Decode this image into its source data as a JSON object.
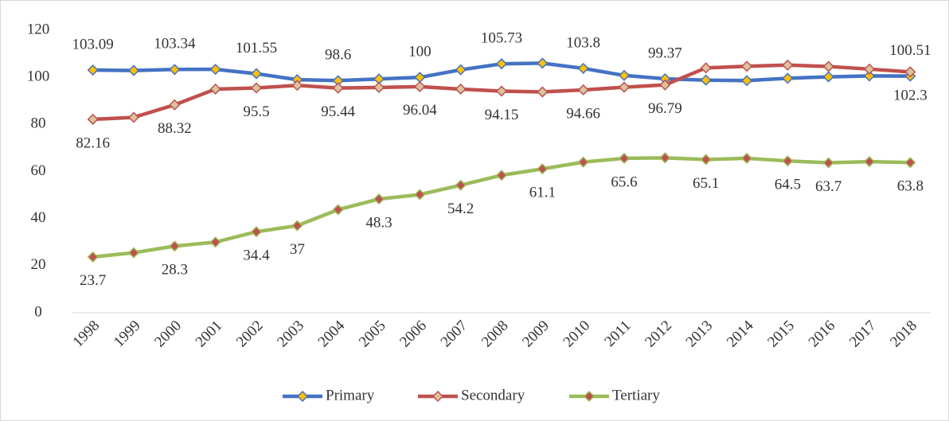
{
  "chart_data": {
    "type": "line",
    "categories": [
      "1998",
      "1999",
      "2000",
      "2001",
      "2002",
      "2003",
      "2004",
      "2005",
      "2006",
      "2007",
      "2008",
      "2009",
      "2010",
      "2011",
      "2012",
      "2013",
      "2014",
      "2015",
      "2016",
      "2017",
      "2018"
    ],
    "ylim": [
      0,
      120
    ],
    "yticks": [
      0,
      20,
      40,
      60,
      80,
      100,
      120
    ],
    "grid": false,
    "legend": "bottom",
    "series": [
      {
        "name": "Primary",
        "color": "#4472c4",
        "marker_color": "#ffc000",
        "label_side": "above",
        "values": [
          103.09,
          102.9,
          103.34,
          103.4,
          101.55,
          99.0,
          98.6,
          99.3,
          100,
          103.2,
          105.73,
          106.0,
          103.8,
          100.8,
          99.37,
          98.8,
          98.6,
          99.6,
          100.2,
          100.6,
          100.51
        ],
        "value_labels": [
          "103.09",
          null,
          "103.34",
          null,
          "101.55",
          null,
          "98.6",
          null,
          "100",
          null,
          "105.73",
          null,
          "103.8",
          null,
          "99.37",
          null,
          null,
          null,
          null,
          null,
          "100.51"
        ]
      },
      {
        "name": "Secondary",
        "color": "#c0504d",
        "marker_color": "#d9c3a0",
        "label_side": "below",
        "values": [
          82.16,
          83.0,
          88.32,
          95.0,
          95.5,
          96.6,
          95.44,
          95.7,
          96.04,
          95.0,
          94.15,
          93.8,
          94.66,
          95.8,
          96.79,
          104.0,
          104.7,
          105.2,
          104.6,
          103.5,
          102.3
        ],
        "value_labels": [
          "82.16",
          null,
          "88.32",
          null,
          "95.5",
          null,
          "95.44",
          null,
          "96.04",
          null,
          "94.15",
          null,
          "94.66",
          null,
          "96.79",
          null,
          null,
          null,
          null,
          null,
          "102.3"
        ]
      },
      {
        "name": "Tertiary",
        "color": "#9bbb59",
        "marker_color": "#c0504d",
        "label_side": "below",
        "values": [
          23.7,
          25.5,
          28.3,
          30.0,
          34.4,
          37,
          43.8,
          48.3,
          50.2,
          54.2,
          58.4,
          61.1,
          64.0,
          65.6,
          65.8,
          65.1,
          65.6,
          64.5,
          63.7,
          64.2,
          63.8
        ],
        "value_labels": [
          "23.7",
          null,
          "28.3",
          null,
          "34.4",
          "37",
          null,
          "48.3",
          null,
          "54.2",
          null,
          "61.1",
          null,
          "65.6",
          null,
          "65.1",
          null,
          "64.5",
          "63.7",
          null,
          "63.8"
        ]
      }
    ]
  }
}
